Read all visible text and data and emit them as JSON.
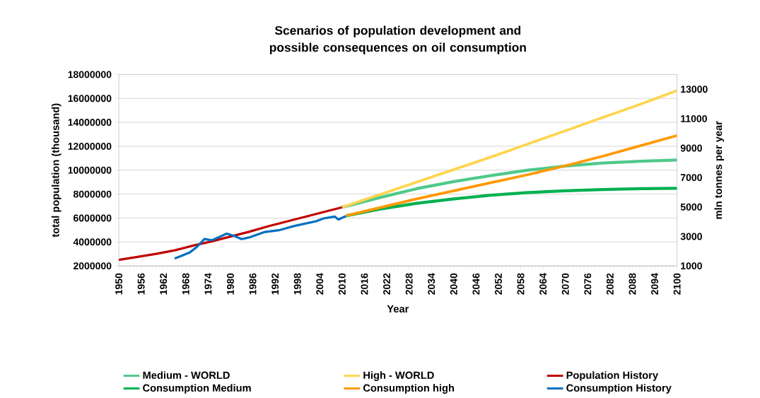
{
  "chart_data": {
    "type": "line",
    "title": "Scenarios of population development and possible consequences on oil consumption",
    "xlabel": "Year",
    "ylabel": "total population  (thousand)",
    "y2label": "mln tonnes per year",
    "xlim": [
      1950,
      2100
    ],
    "xticks": [
      1950,
      1956,
      1962,
      1968,
      1974,
      1980,
      1986,
      1992,
      1998,
      2004,
      2010,
      2016,
      2022,
      2028,
      2034,
      2040,
      2046,
      2052,
      2058,
      2064,
      2070,
      2076,
      2082,
      2088,
      2094,
      2100
    ],
    "ylim": [
      2000000,
      18000000
    ],
    "yticks": [
      2000000,
      4000000,
      6000000,
      8000000,
      10000000,
      12000000,
      14000000,
      16000000,
      18000000
    ],
    "y2lim": [
      1000,
      14000
    ],
    "y2ticks": [
      1000,
      3000,
      5000,
      7000,
      9000,
      11000,
      13000
    ],
    "grid": "y",
    "legend": "bottom",
    "marker": "none",
    "line_style": "solid",
    "series": [
      {
        "name": "Medium - WORLD",
        "color": "#4fc98a",
        "x": [
          2010,
          2020,
          2030,
          2040,
          2050,
          2060,
          2070,
          2080,
          2090,
          2100
        ],
        "values": [
          6900000,
          7700000,
          8450000,
          9050000,
          9550000,
          10000000,
          10350000,
          10600000,
          10750000,
          10850000
        ]
      },
      {
        "name": "High - WORLD",
        "color": "#ffd54f",
        "x": [
          2010,
          2020,
          2030,
          2040,
          2050,
          2060,
          2070,
          2080,
          2090,
          2100
        ],
        "values": [
          6900000,
          7950000,
          9000000,
          10050000,
          11100000,
          12200000,
          13300000,
          14400000,
          15500000,
          16650000
        ]
      },
      {
        "name": "Population History",
        "color": "#c00000",
        "x": [
          1950,
          1955,
          1960,
          1965,
          1970,
          1975,
          1980,
          1985,
          1990,
          1995,
          2000,
          2005,
          2010
        ],
        "values": [
          2500000,
          2750000,
          3000000,
          3300000,
          3700000,
          4050000,
          4450000,
          4850000,
          5300000,
          5700000,
          6100000,
          6500000,
          6900000
        ]
      },
      {
        "name": "Consumption Medium",
        "color": "#00b050",
        "axis": "y2",
        "x": [
          2011,
          2020,
          2030,
          2040,
          2050,
          2060,
          2070,
          2080,
          2090,
          2100
        ],
        "values": [
          4400,
          4850,
          5250,
          5550,
          5800,
          5980,
          6100,
          6180,
          6240,
          6270
        ]
      },
      {
        "name": "Consumption high",
        "color": "#ff9900",
        "axis": "y2",
        "x": [
          2011,
          2020,
          2030,
          2040,
          2050,
          2060,
          2070,
          2080,
          2090,
          2100
        ],
        "values": [
          4400,
          4950,
          5550,
          6100,
          6650,
          7200,
          7800,
          8450,
          9150,
          9850
        ]
      },
      {
        "name": "Consumption History",
        "color": "#0070c0",
        "axis": "y2",
        "x": [
          1965,
          1969,
          1971,
          1973,
          1975,
          1979,
          1981,
          1983,
          1985,
          1989,
          1993,
          1997,
          2000,
          2003,
          2005,
          2008,
          2009,
          2011
        ],
        "values": [
          1500,
          1900,
          2290,
          2820,
          2740,
          3190,
          3030,
          2820,
          2930,
          3290,
          3420,
          3700,
          3870,
          4030,
          4220,
          4350,
          4150,
          4380
        ]
      }
    ]
  }
}
